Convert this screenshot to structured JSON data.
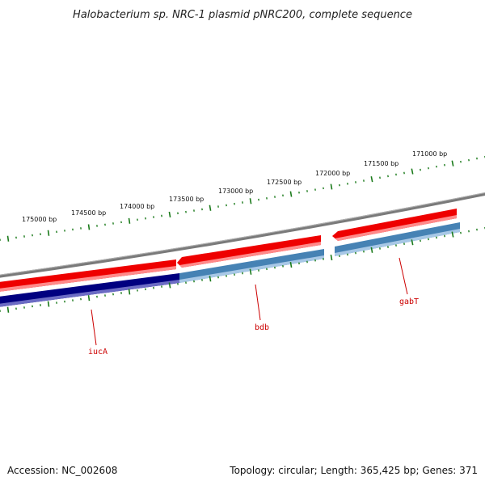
{
  "title": "Halobacterium sp. NRC-1 plasmid pNRC200, complete sequence",
  "footer": {
    "accession": "Accession: NC_002608",
    "summary": "Topology: circular; Length: 365,425 bp; Genes: 371"
  },
  "ruler": {
    "color": "#1a7a1a",
    "labels": [
      {
        "bp": 175000,
        "text": "175000 bp"
      },
      {
        "bp": 174500,
        "text": "174500 bp"
      },
      {
        "bp": 174000,
        "text": "174000 bp"
      },
      {
        "bp": 173500,
        "text": "173500 bp"
      },
      {
        "bp": 173000,
        "text": "173000 bp"
      },
      {
        "bp": 172500,
        "text": "172500 bp"
      },
      {
        "bp": 172000,
        "text": "172000 bp"
      },
      {
        "bp": 171500,
        "text": "171500 bp"
      },
      {
        "bp": 171000,
        "text": "171000 bp"
      }
    ]
  },
  "colors": {
    "backbone": "#7a7a7a",
    "feature_red": "#ee0000",
    "feature_red_light": "#ff8080",
    "cds_navy": "#000080",
    "cds_navy_light": "#7070c8",
    "cds_steel": "#4682b4",
    "cds_steel_light": "#9fc1e0",
    "label_red": "#cc0000"
  },
  "genes": [
    {
      "name": "iucA",
      "color": "cds_navy"
    },
    {
      "name": "bdb",
      "color": "cds_steel"
    },
    {
      "name": "gabT",
      "color": "cds_steel"
    }
  ]
}
